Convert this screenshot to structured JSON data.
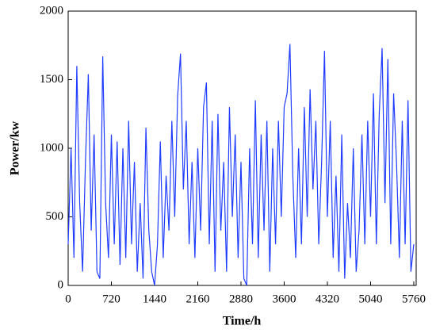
{
  "chart_data": {
    "type": "line",
    "xlabel": "Time/h",
    "ylabel": "Power/kw",
    "xlim": [
      0,
      5800
    ],
    "ylim": [
      0,
      2000
    ],
    "xticks": [
      0,
      720,
      1440,
      2160,
      2880,
      3600,
      4320,
      5040,
      5760
    ],
    "yticks": [
      0,
      500,
      1000,
      1500,
      2000
    ],
    "series": [
      {
        "color": "#1f3cff",
        "x": [
          0,
          48,
          96,
          144,
          192,
          240,
          288,
          336,
          384,
          432,
          480,
          528,
          576,
          624,
          672,
          720,
          768,
          816,
          864,
          912,
          960,
          1008,
          1056,
          1104,
          1152,
          1200,
          1248,
          1296,
          1344,
          1392,
          1440,
          1488,
          1536,
          1584,
          1632,
          1680,
          1728,
          1776,
          1824,
          1872,
          1920,
          1968,
          2016,
          2064,
          2112,
          2160,
          2208,
          2256,
          2304,
          2352,
          2400,
          2448,
          2496,
          2544,
          2592,
          2640,
          2688,
          2736,
          2784,
          2832,
          2880,
          2928,
          2976,
          3024,
          3072,
          3120,
          3168,
          3216,
          3264,
          3312,
          3360,
          3408,
          3456,
          3504,
          3552,
          3600,
          3648,
          3696,
          3744,
          3792,
          3840,
          3888,
          3936,
          3984,
          4032,
          4080,
          4128,
          4176,
          4224,
          4272,
          4320,
          4368,
          4416,
          4464,
          4512,
          4560,
          4608,
          4656,
          4704,
          4752,
          4800,
          4848,
          4896,
          4944,
          4992,
          5040,
          5088,
          5136,
          5184,
          5232,
          5280,
          5328,
          5376,
          5424,
          5472,
          5520,
          5568,
          5616,
          5664,
          5712,
          5760
        ],
        "values": [
          300,
          1000,
          200,
          1600,
          600,
          100,
          900,
          1540,
          400,
          1100,
          100,
          50,
          1670,
          600,
          200,
          1100,
          300,
          1050,
          150,
          1000,
          200,
          1200,
          300,
          900,
          100,
          600,
          50,
          1150,
          400,
          100,
          0,
          300,
          1050,
          200,
          800,
          400,
          1200,
          500,
          1380,
          1690,
          700,
          1200,
          300,
          900,
          200,
          1000,
          400,
          1300,
          1480,
          300,
          1200,
          100,
          1250,
          400,
          900,
          100,
          1300,
          500,
          1100,
          200,
          900,
          50,
          0,
          1000,
          300,
          1350,
          200,
          1100,
          400,
          1200,
          100,
          1000,
          300,
          1200,
          500,
          1300,
          1400,
          1760,
          800,
          200,
          1000,
          300,
          1300,
          500,
          1430,
          700,
          1200,
          300,
          900,
          1710,
          500,
          1200,
          200,
          800,
          100,
          1100,
          50,
          600,
          200,
          1000,
          100,
          400,
          1100,
          300,
          1200,
          500,
          1400,
          300,
          1250,
          1730,
          600,
          1650,
          300,
          1400,
          900,
          200,
          1200,
          300,
          1350,
          100,
          300
        ]
      }
    ]
  }
}
